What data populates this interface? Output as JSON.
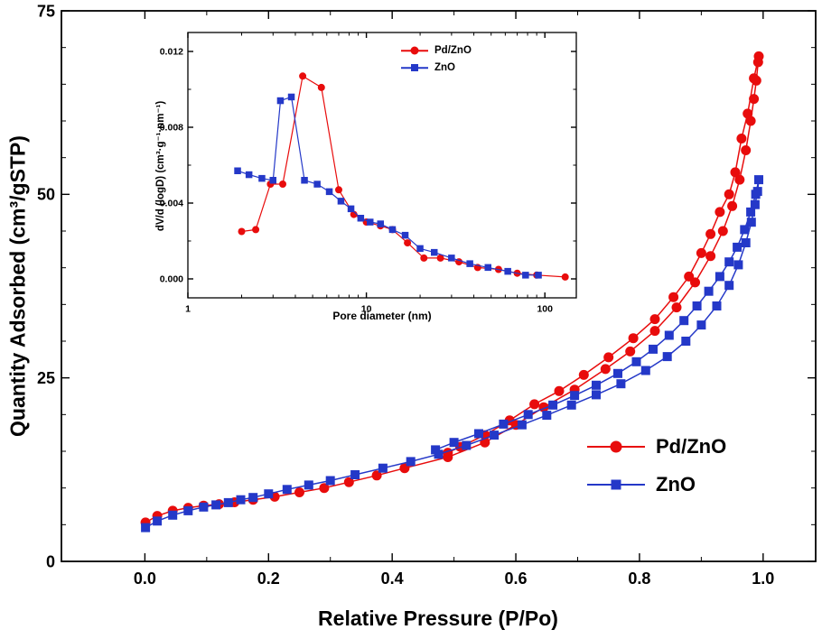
{
  "figure": {
    "background": "#ffffff",
    "axis_color": "#000000"
  },
  "chart_data": [
    {
      "id": "main",
      "type": "line",
      "title": "",
      "xlabel": "Relative Pressure (P/Po)",
      "ylabel": "Quantity Adsorbed (cm³/gSTP)",
      "x_scale": "linear",
      "xlim": [
        -0.135,
        1.085
      ],
      "ylim": [
        0,
        75
      ],
      "grid": false,
      "legend_position": "lower-right",
      "xticks": {
        "values": [
          0.0,
          0.2,
          0.4,
          0.6,
          0.8,
          1.0
        ],
        "labels": [
          "0.0",
          "0.2",
          "0.4",
          "0.6",
          "0.8",
          "1.0"
        ]
      },
      "yticks": {
        "values": [
          0,
          25,
          50,
          75
        ],
        "labels": [
          "0",
          "25",
          "50",
          "75"
        ]
      },
      "xminor": [
        0.1,
        0.3,
        0.5,
        0.7,
        0.9
      ],
      "yminor": [
        5,
        10,
        15,
        20,
        30,
        35,
        40,
        45,
        55,
        60,
        65,
        70
      ],
      "series": [
        {
          "name": "Pd/ZnO",
          "color": "#e80c0c",
          "marker": "circle",
          "branches": "adsorption-then-desorption",
          "points": [
            [
              0.001,
              5.3
            ],
            [
              0.02,
              6.2
            ],
            [
              0.045,
              6.9
            ],
            [
              0.07,
              7.3
            ],
            [
              0.095,
              7.6
            ],
            [
              0.12,
              7.8
            ],
            [
              0.145,
              8.05
            ],
            [
              0.175,
              8.4
            ],
            [
              0.21,
              8.8
            ],
            [
              0.25,
              9.4
            ],
            [
              0.29,
              10.0
            ],
            [
              0.33,
              10.8
            ],
            [
              0.375,
              11.7
            ],
            [
              0.42,
              12.7
            ],
            [
              0.49,
              14.2
            ],
            [
              0.55,
              16.2
            ],
            [
              0.6,
              18.6
            ],
            [
              0.645,
              21.0
            ],
            [
              0.695,
              23.4
            ],
            [
              0.745,
              26.2
            ],
            [
              0.785,
              28.6
            ],
            [
              0.825,
              31.4
            ],
            [
              0.86,
              34.6
            ],
            [
              0.89,
              38.0
            ],
            [
              0.915,
              41.6
            ],
            [
              0.935,
              45.0
            ],
            [
              0.95,
              48.4
            ],
            [
              0.962,
              52.0
            ],
            [
              0.972,
              56.0
            ],
            [
              0.98,
              60.0
            ],
            [
              0.985,
              63.0
            ],
            [
              0.989,
              65.5
            ],
            [
              0.992,
              68.0
            ],
            [
              0.993,
              68.8
            ],
            [
              0.985,
              65.8
            ],
            [
              0.975,
              61.0
            ],
            [
              0.965,
              57.6
            ],
            [
              0.955,
              53.0
            ],
            [
              0.945,
              50.0
            ],
            [
              0.93,
              47.6
            ],
            [
              0.915,
              44.6
            ],
            [
              0.9,
              42.0
            ],
            [
              0.88,
              38.8
            ],
            [
              0.855,
              36.0
            ],
            [
              0.825,
              33.0
            ],
            [
              0.79,
              30.4
            ],
            [
              0.75,
              27.8
            ],
            [
              0.71,
              25.4
            ],
            [
              0.67,
              23.2
            ],
            [
              0.63,
              21.4
            ],
            [
              0.59,
              19.2
            ],
            [
              0.55,
              17.2
            ],
            [
              0.51,
              15.6
            ],
            [
              0.49,
              14.8
            ]
          ]
        },
        {
          "name": "ZnO",
          "color": "#2438c8",
          "marker": "square",
          "branches": "adsorption-then-desorption",
          "points": [
            [
              0.001,
              4.6
            ],
            [
              0.02,
              5.5
            ],
            [
              0.045,
              6.3
            ],
            [
              0.07,
              6.9
            ],
            [
              0.095,
              7.4
            ],
            [
              0.115,
              7.7
            ],
            [
              0.135,
              8.0
            ],
            [
              0.155,
              8.4
            ],
            [
              0.175,
              8.7
            ],
            [
              0.2,
              9.2
            ],
            [
              0.23,
              9.8
            ],
            [
              0.265,
              10.4
            ],
            [
              0.3,
              11.0
            ],
            [
              0.34,
              11.8
            ],
            [
              0.385,
              12.7
            ],
            [
              0.43,
              13.6
            ],
            [
              0.475,
              14.6
            ],
            [
              0.52,
              15.8
            ],
            [
              0.565,
              17.2
            ],
            [
              0.61,
              18.6
            ],
            [
              0.65,
              19.9
            ],
            [
              0.69,
              21.3
            ],
            [
              0.73,
              22.7
            ],
            [
              0.77,
              24.2
            ],
            [
              0.81,
              26.0
            ],
            [
              0.845,
              27.9
            ],
            [
              0.875,
              30.0
            ],
            [
              0.9,
              32.2
            ],
            [
              0.925,
              34.8
            ],
            [
              0.945,
              37.6
            ],
            [
              0.96,
              40.4
            ],
            [
              0.972,
              43.4
            ],
            [
              0.981,
              46.2
            ],
            [
              0.987,
              48.6
            ],
            [
              0.991,
              50.4
            ],
            [
              0.993,
              52.0
            ],
            [
              0.988,
              50.0
            ],
            [
              0.98,
              47.6
            ],
            [
              0.97,
              45.2
            ],
            [
              0.958,
              42.8
            ],
            [
              0.945,
              40.8
            ],
            [
              0.93,
              38.8
            ],
            [
              0.912,
              36.8
            ],
            [
              0.893,
              34.8
            ],
            [
              0.872,
              32.8
            ],
            [
              0.848,
              30.8
            ],
            [
              0.822,
              28.9
            ],
            [
              0.795,
              27.2
            ],
            [
              0.765,
              25.6
            ],
            [
              0.73,
              24.0
            ],
            [
              0.695,
              22.6
            ],
            [
              0.66,
              21.3
            ],
            [
              0.62,
              20.0
            ],
            [
              0.58,
              18.7
            ],
            [
              0.54,
              17.4
            ],
            [
              0.5,
              16.2
            ],
            [
              0.47,
              15.2
            ]
          ]
        }
      ]
    },
    {
      "id": "inset",
      "type": "line",
      "title": "",
      "xlabel": "Pore diameter (nm)",
      "ylabel": "dV/d (logD) (cm³·g⁻¹·nm⁻¹)",
      "x_scale": "log",
      "xlim": [
        1,
        150
      ],
      "ylim": [
        -0.001,
        0.013
      ],
      "grid": false,
      "legend_position": "upper-right",
      "xticks": {
        "values": [
          1,
          10,
          100
        ],
        "labels": [
          "1",
          "10",
          "100"
        ]
      },
      "yticks": {
        "values": [
          0.0,
          0.004,
          0.008,
          0.012
        ],
        "labels": [
          "0.000",
          "0.004",
          "0.008",
          "0.012"
        ]
      },
      "xminor": [
        2,
        3,
        4,
        5,
        6,
        7,
        8,
        9,
        20,
        30,
        40,
        50,
        60,
        70,
        80,
        90
      ],
      "yminor": [
        0.002,
        0.006,
        0.01
      ],
      "series": [
        {
          "name": "Pd/ZnO",
          "color": "#e80c0c",
          "marker": "circle",
          "points": [
            [
              2.0,
              0.0025
            ],
            [
              2.4,
              0.0026
            ],
            [
              2.9,
              0.005
            ],
            [
              3.4,
              0.005
            ],
            [
              4.4,
              0.0107
            ],
            [
              5.6,
              0.0101
            ],
            [
              7.0,
              0.0047
            ],
            [
              8.5,
              0.0034
            ],
            [
              10,
              0.003
            ],
            [
              12,
              0.0028
            ],
            [
              14,
              0.0026
            ],
            [
              17,
              0.0019
            ],
            [
              21,
              0.0011
            ],
            [
              26,
              0.0011
            ],
            [
              33,
              0.0009
            ],
            [
              42,
              0.0006
            ],
            [
              55,
              0.0005
            ],
            [
              70,
              0.0003
            ],
            [
              90,
              0.0002
            ],
            [
              130,
              0.0001
            ]
          ]
        },
        {
          "name": "ZnO",
          "color": "#2438c8",
          "marker": "square",
          "points": [
            [
              1.9,
              0.0057
            ],
            [
              2.2,
              0.0055
            ],
            [
              2.6,
              0.0053
            ],
            [
              3.0,
              0.0052
            ],
            [
              3.3,
              0.0094
            ],
            [
              3.8,
              0.0096
            ],
            [
              4.5,
              0.0052
            ],
            [
              5.3,
              0.005
            ],
            [
              6.2,
              0.0046
            ],
            [
              7.2,
              0.0041
            ],
            [
              8.2,
              0.0037
            ],
            [
              9.3,
              0.0032
            ],
            [
              10.5,
              0.003
            ],
            [
              12,
              0.0029
            ],
            [
              14,
              0.0026
            ],
            [
              16.5,
              0.0023
            ],
            [
              20,
              0.0016
            ],
            [
              24,
              0.0014
            ],
            [
              30,
              0.0011
            ],
            [
              38,
              0.0008
            ],
            [
              48,
              0.0006
            ],
            [
              62,
              0.0004
            ],
            [
              78,
              0.0002
            ],
            [
              92,
              0.0002
            ]
          ]
        }
      ]
    }
  ]
}
